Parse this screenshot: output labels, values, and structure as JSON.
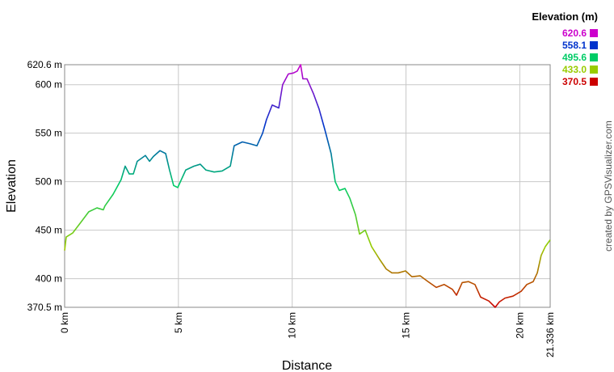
{
  "chart_data": {
    "type": "line",
    "xlabel": "Distance",
    "ylabel": "Elevation",
    "credit": "created by GPSVisualizer.com",
    "x": [
      0,
      0.07,
      0.35,
      0.71,
      1.06,
      1.42,
      1.7,
      1.77,
      2.13,
      2.48,
      2.66,
      2.84,
      3.02,
      3.19,
      3.55,
      3.73,
      3.9,
      4.19,
      4.44,
      4.61,
      4.79,
      4.97,
      5.32,
      5.68,
      5.96,
      6.21,
      6.57,
      6.92,
      7.28,
      7.45,
      7.81,
      8.16,
      8.45,
      8.7,
      8.87,
      9.12,
      9.41,
      9.58,
      9.83,
      10.05,
      10.22,
      10.37,
      10.47,
      10.65,
      10.93,
      11.18,
      11.43,
      11.71,
      11.89,
      12.07,
      12.32,
      12.53,
      12.78,
      12.96,
      13.21,
      13.49,
      13.84,
      14.13,
      14.38,
      14.66,
      14.98,
      15.26,
      15.62,
      15.97,
      16.33,
      16.68,
      17.04,
      17.22,
      17.47,
      17.75,
      18.03,
      18.28,
      18.64,
      18.92,
      19.1,
      19.35,
      19.7,
      20.06,
      20.31,
      20.59,
      20.77,
      20.94,
      21.12,
      21.336
    ],
    "values": [
      429,
      443,
      447,
      458,
      469,
      473,
      471,
      475,
      487,
      502,
      516,
      508,
      508,
      521,
      527,
      521,
      526,
      532,
      529,
      512,
      496,
      494,
      512,
      516,
      518,
      512,
      510,
      511,
      516,
      537,
      541,
      539,
      537,
      550,
      564,
      579,
      576,
      600,
      611,
      612,
      614,
      620.6,
      606,
      606,
      591,
      575,
      554,
      529,
      500,
      491,
      493,
      483,
      466,
      446,
      450,
      433,
      420,
      410,
      406,
      406,
      408,
      402,
      403,
      397,
      391,
      394,
      389,
      383,
      396,
      397,
      394,
      381,
      377,
      370.5,
      376,
      380,
      382,
      387,
      394,
      397,
      406,
      424,
      433,
      440
    ],
    "xlim": [
      0,
      21.336
    ],
    "ylim": [
      370.5,
      620.6
    ],
    "xticks": [
      {
        "value": 0,
        "label": "0 km"
      },
      {
        "value": 5,
        "label": "5 km"
      },
      {
        "value": 10,
        "label": "10 km"
      },
      {
        "value": 15,
        "label": "15 km"
      },
      {
        "value": 20,
        "label": "20 km"
      },
      {
        "value": 21.336,
        "label": "21.336 km"
      }
    ],
    "yticks": [
      {
        "value": 370.5,
        "label": "370.5 m"
      },
      {
        "value": 400,
        "label": "400 m"
      },
      {
        "value": 450,
        "label": "450 m"
      },
      {
        "value": 500,
        "label": "500 m"
      },
      {
        "value": 550,
        "label": "550 m"
      },
      {
        "value": 600,
        "label": "600 m"
      },
      {
        "value": 620.6,
        "label": "620.6 m"
      }
    ],
    "grid": true,
    "colorscale": {
      "title": "Elevation (m)",
      "stops": [
        {
          "value": 620.6,
          "color": "#cc00cc"
        },
        {
          "value": 558.1,
          "color": "#0033cc"
        },
        {
          "value": 495.6,
          "color": "#00cc66"
        },
        {
          "value": 433,
          "label": "433.0",
          "color": "#99cc00"
        },
        {
          "value": 370.5,
          "color": "#cc0000"
        }
      ]
    }
  }
}
